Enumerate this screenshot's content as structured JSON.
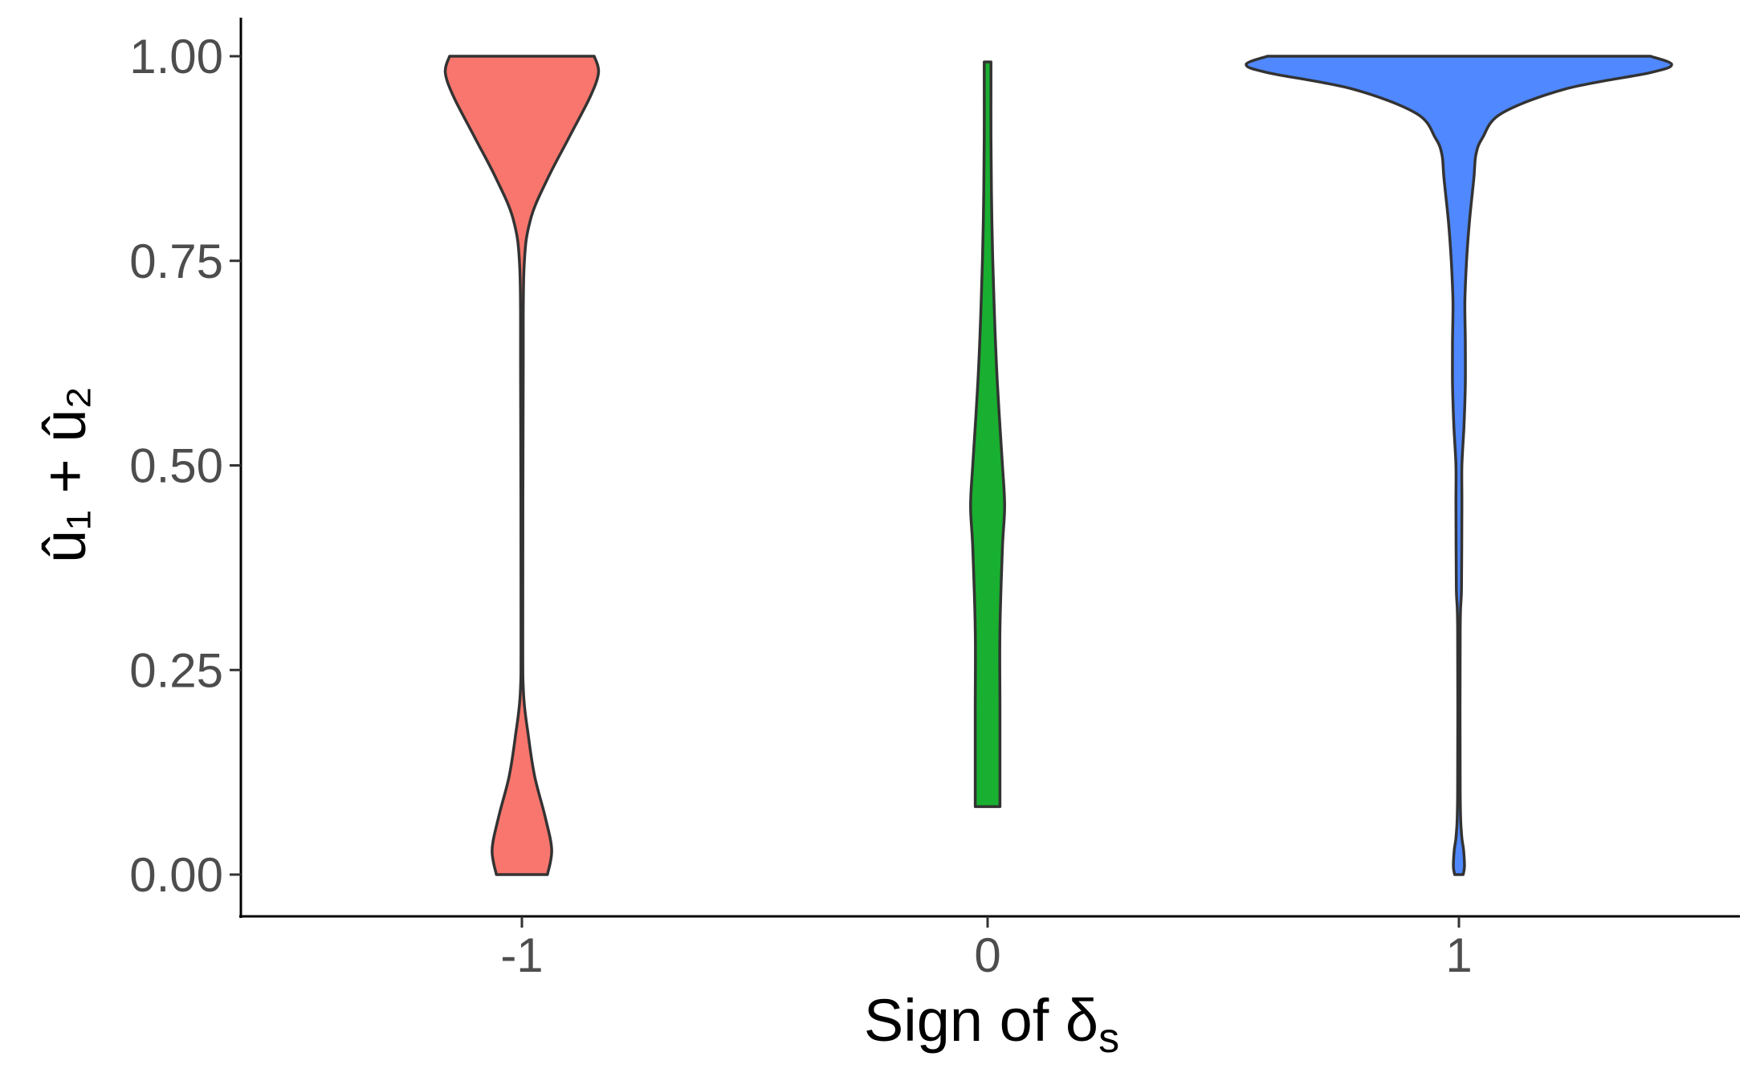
{
  "chart_data": {
    "type": "violin",
    "xlabel": "Sign of δ",
    "xlabel_subscript": "s",
    "ylabel": "û₁ + û₂",
    "ylim": [
      -0.05,
      1.05
    ],
    "y_ticks": [
      "0.00",
      "0.25",
      "0.50",
      "0.75",
      "1.00"
    ],
    "categories": [
      "-1",
      "0",
      "1"
    ],
    "grid": false,
    "legend": "none",
    "series": [
      {
        "category": "-1",
        "color": "#F8766D",
        "y_range": [
          0.0,
          1.0
        ],
        "density_profile": [
          [
            0.0,
            0.06
          ],
          [
            0.03,
            0.07
          ],
          [
            0.07,
            0.055
          ],
          [
            0.12,
            0.03
          ],
          [
            0.17,
            0.015
          ],
          [
            0.22,
            0.004
          ],
          [
            0.3,
            0.002
          ],
          [
            0.6,
            0.003
          ],
          [
            0.74,
            0.005
          ],
          [
            0.8,
            0.02
          ],
          [
            0.85,
            0.06
          ],
          [
            0.9,
            0.11
          ],
          [
            0.95,
            0.16
          ],
          [
            0.98,
            0.18
          ],
          [
            1.0,
            0.17
          ]
        ]
      },
      {
        "category": "0",
        "color": "#19AF30",
        "y_range": [
          0.083,
          0.993
        ],
        "density_profile": [
          [
            0.083,
            0.029
          ],
          [
            0.2,
            0.029
          ],
          [
            0.3,
            0.029
          ],
          [
            0.4,
            0.035
          ],
          [
            0.45,
            0.04
          ],
          [
            0.5,
            0.035
          ],
          [
            0.6,
            0.023
          ],
          [
            0.7,
            0.015
          ],
          [
            0.8,
            0.01
          ],
          [
            0.9,
            0.008
          ],
          [
            0.993,
            0.008
          ]
        ]
      },
      {
        "category": "1",
        "color": "#4F88FF",
        "y_range": [
          0.0,
          1.0
        ],
        "density_profile": [
          [
            0.0,
            0.01
          ],
          [
            0.01,
            0.013
          ],
          [
            0.03,
            0.011
          ],
          [
            0.05,
            0.006
          ],
          [
            0.1,
            0.003
          ],
          [
            0.3,
            0.003
          ],
          [
            0.35,
            0.006
          ],
          [
            0.45,
            0.007
          ],
          [
            0.5,
            0.007
          ],
          [
            0.55,
            0.012
          ],
          [
            0.6,
            0.015
          ],
          [
            0.65,
            0.015
          ],
          [
            0.7,
            0.014
          ],
          [
            0.75,
            0.018
          ],
          [
            0.8,
            0.025
          ],
          [
            0.85,
            0.035
          ],
          [
            0.88,
            0.04
          ],
          [
            0.9,
            0.055
          ],
          [
            0.93,
            0.1
          ],
          [
            0.96,
            0.25
          ],
          [
            0.98,
            0.45
          ],
          [
            0.99,
            0.5
          ],
          [
            1.0,
            0.45
          ]
        ]
      }
    ]
  }
}
